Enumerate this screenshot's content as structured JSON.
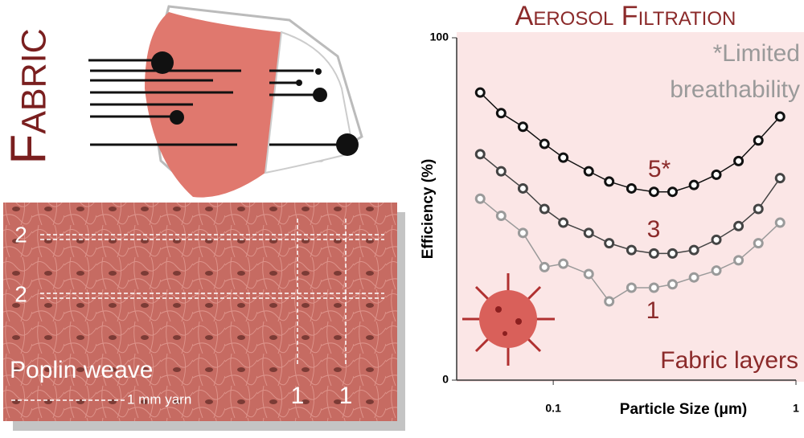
{
  "fabric_label": "Fabric",
  "weave": {
    "row_top": "2",
    "row_bottom": "2",
    "col_left": "1",
    "col_right": "1",
    "title": "Poplin weave",
    "scale": "1 mm yarn"
  },
  "chart_data": {
    "type": "line",
    "title": "Aerosol Filtration",
    "x_label": "Particle Size (μm)",
    "y_label": "Efficiency (%)",
    "xscale": "log",
    "xlim": [
      0.04,
      1
    ],
    "xticks": [
      0.1,
      1
    ],
    "ylim": [
      0,
      100
    ],
    "yticks": [
      0,
      100
    ],
    "x": [
      0.05,
      0.061,
      0.075,
      0.092,
      0.11,
      0.14,
      0.17,
      0.21,
      0.26,
      0.31,
      0.38,
      0.47,
      0.58,
      0.7,
      0.86
    ],
    "series": [
      {
        "name": "5*",
        "color": "#111111",
        "values": [
          84,
          78,
          74,
          69,
          65,
          61,
          58,
          56,
          55,
          55,
          57,
          60,
          64,
          70,
          77
        ]
      },
      {
        "name": "3",
        "color": "#444444",
        "values": [
          66,
          61,
          56,
          50,
          46,
          43,
          40,
          38,
          37,
          37,
          38,
          41,
          45,
          50,
          59
        ]
      },
      {
        "name": "1",
        "color": "#9a9a9a",
        "values": [
          53,
          48,
          43,
          33,
          34,
          31,
          23,
          27,
          27,
          28,
          30,
          32,
          35,
          40,
          46
        ]
      }
    ],
    "annotations": [
      "*Limited",
      "breathability",
      "Fabric layers"
    ]
  }
}
